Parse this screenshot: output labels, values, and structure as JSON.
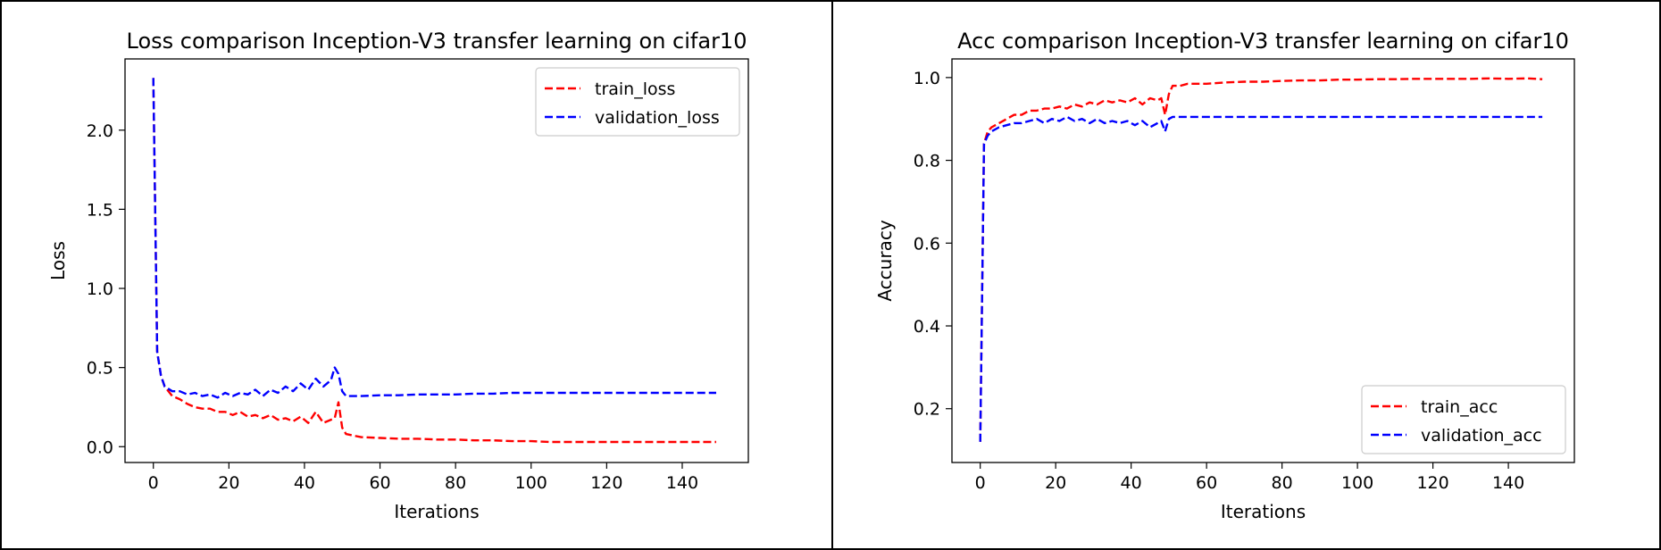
{
  "chart_data": [
    {
      "type": "line",
      "title": "Loss comparison Inception-V3 transfer learning on cifar10",
      "xlabel": "Iterations",
      "ylabel": "Loss",
      "xlim": [
        -7.5,
        157.5
      ],
      "ylim": [
        -0.1,
        2.45
      ],
      "xticks": [
        0,
        20,
        40,
        60,
        80,
        100,
        120,
        140
      ],
      "yticks": [
        0.0,
        0.5,
        1.0,
        1.5,
        2.0
      ],
      "ytick_labels": [
        "0.0",
        "0.5",
        "1.0",
        "1.5",
        "2.0"
      ],
      "legend_position": "upper right",
      "grid": false,
      "series": [
        {
          "name": "train_loss",
          "color": "#ff0000",
          "linestyle": "dashed",
          "x": [
            0,
            1,
            2,
            3,
            5,
            7,
            9,
            11,
            13,
            15,
            17,
            19,
            21,
            23,
            25,
            27,
            29,
            31,
            33,
            35,
            37,
            39,
            41,
            43,
            45,
            47,
            48,
            49,
            50,
            51,
            53,
            55,
            60,
            65,
            70,
            75,
            80,
            85,
            90,
            95,
            100,
            105,
            110,
            115,
            120,
            125,
            130,
            135,
            140,
            145,
            149
          ],
          "y": [
            2.33,
            0.6,
            0.45,
            0.38,
            0.32,
            0.3,
            0.27,
            0.25,
            0.24,
            0.24,
            0.22,
            0.22,
            0.2,
            0.22,
            0.19,
            0.2,
            0.18,
            0.2,
            0.17,
            0.18,
            0.16,
            0.19,
            0.15,
            0.22,
            0.15,
            0.17,
            0.18,
            0.28,
            0.12,
            0.08,
            0.07,
            0.06,
            0.055,
            0.05,
            0.05,
            0.045,
            0.045,
            0.04,
            0.04,
            0.035,
            0.035,
            0.03,
            0.03,
            0.03,
            0.03,
            0.03,
            0.03,
            0.03,
            0.03,
            0.03,
            0.03
          ]
        },
        {
          "name": "validation_loss",
          "color": "#0000ff",
          "linestyle": "dashed",
          "x": [
            0,
            1,
            2,
            3,
            5,
            7,
            9,
            11,
            13,
            15,
            17,
            19,
            21,
            23,
            25,
            27,
            29,
            31,
            33,
            35,
            37,
            39,
            41,
            43,
            45,
            47,
            48,
            49,
            50,
            51,
            53,
            55,
            60,
            65,
            70,
            75,
            80,
            85,
            90,
            95,
            100,
            105,
            110,
            115,
            120,
            125,
            130,
            135,
            140,
            145,
            149
          ],
          "y": [
            2.33,
            0.6,
            0.45,
            0.38,
            0.35,
            0.35,
            0.33,
            0.34,
            0.32,
            0.33,
            0.31,
            0.34,
            0.32,
            0.34,
            0.33,
            0.36,
            0.32,
            0.36,
            0.34,
            0.38,
            0.35,
            0.4,
            0.36,
            0.43,
            0.38,
            0.42,
            0.5,
            0.46,
            0.35,
            0.32,
            0.32,
            0.32,
            0.325,
            0.325,
            0.33,
            0.33,
            0.33,
            0.335,
            0.335,
            0.34,
            0.34,
            0.34,
            0.34,
            0.34,
            0.34,
            0.34,
            0.34,
            0.34,
            0.34,
            0.34,
            0.34
          ]
        }
      ]
    },
    {
      "type": "line",
      "title": "Acc comparison Inception-V3 transfer learning on cifar10",
      "xlabel": "Iterations",
      "ylabel": "Accuracy",
      "xlim": [
        -7.5,
        157.5
      ],
      "ylim": [
        0.07,
        1.045
      ],
      "xticks": [
        0,
        20,
        40,
        60,
        80,
        100,
        120,
        140
      ],
      "yticks": [
        0.2,
        0.4,
        0.6,
        0.8,
        1.0
      ],
      "ytick_labels": [
        "0.2",
        "0.4",
        "0.6",
        "0.8",
        "1.0"
      ],
      "legend_position": "lower right",
      "grid": false,
      "series": [
        {
          "name": "train_acc",
          "color": "#ff0000",
          "linestyle": "dashed",
          "x": [
            0,
            1,
            2,
            3,
            5,
            7,
            9,
            11,
            13,
            15,
            17,
            19,
            21,
            23,
            25,
            27,
            29,
            31,
            33,
            35,
            37,
            39,
            41,
            43,
            45,
            47,
            48,
            49,
            50,
            51,
            53,
            55,
            60,
            65,
            70,
            75,
            80,
            85,
            90,
            95,
            100,
            105,
            110,
            115,
            120,
            125,
            130,
            135,
            140,
            145,
            149
          ],
          "y": [
            0.12,
            0.84,
            0.87,
            0.88,
            0.89,
            0.9,
            0.91,
            0.91,
            0.92,
            0.92,
            0.925,
            0.925,
            0.93,
            0.925,
            0.935,
            0.93,
            0.94,
            0.935,
            0.945,
            0.94,
            0.945,
            0.94,
            0.95,
            0.935,
            0.95,
            0.945,
            0.95,
            0.91,
            0.96,
            0.98,
            0.98,
            0.985,
            0.985,
            0.988,
            0.99,
            0.99,
            0.992,
            0.993,
            0.993,
            0.995,
            0.995,
            0.996,
            0.996,
            0.997,
            0.997,
            0.997,
            0.997,
            0.998,
            0.997,
            0.998,
            0.996
          ]
        },
        {
          "name": "validation_acc",
          "color": "#0000ff",
          "linestyle": "dashed",
          "x": [
            0,
            1,
            2,
            3,
            5,
            7,
            9,
            11,
            13,
            15,
            17,
            19,
            21,
            23,
            25,
            27,
            29,
            31,
            33,
            35,
            37,
            39,
            41,
            43,
            45,
            47,
            48,
            49,
            50,
            51,
            53,
            55,
            60,
            65,
            70,
            75,
            80,
            85,
            90,
            95,
            100,
            105,
            110,
            115,
            120,
            125,
            130,
            135,
            140,
            145,
            149
          ],
          "y": [
            0.12,
            0.84,
            0.86,
            0.87,
            0.88,
            0.885,
            0.89,
            0.89,
            0.895,
            0.9,
            0.89,
            0.9,
            0.895,
            0.905,
            0.895,
            0.9,
            0.89,
            0.9,
            0.89,
            0.895,
            0.89,
            0.895,
            0.885,
            0.895,
            0.88,
            0.89,
            0.895,
            0.87,
            0.9,
            0.905,
            0.905,
            0.905,
            0.905,
            0.905,
            0.905,
            0.905,
            0.905,
            0.905,
            0.905,
            0.905,
            0.905,
            0.905,
            0.905,
            0.905,
            0.905,
            0.905,
            0.905,
            0.905,
            0.905,
            0.905,
            0.905
          ]
        }
      ]
    }
  ]
}
